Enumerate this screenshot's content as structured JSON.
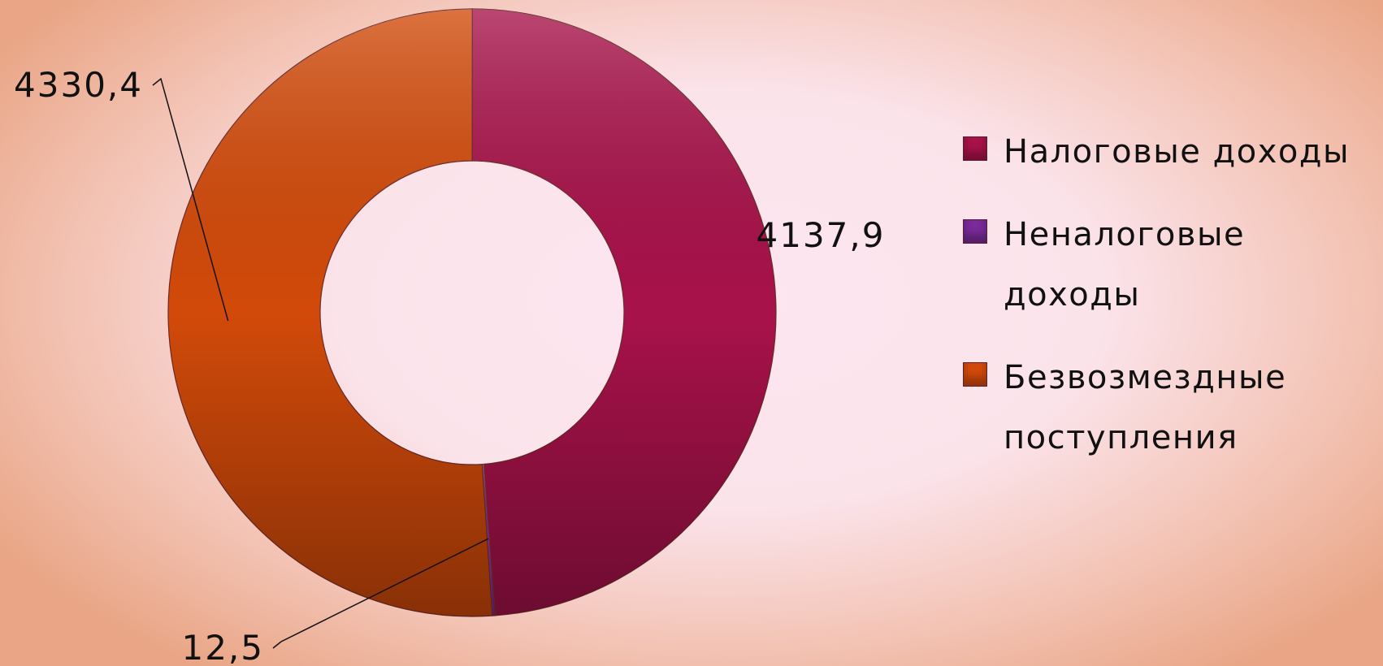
{
  "chart_data": {
    "type": "pie",
    "categories": [
      "Налоговые доходы",
      "Неналоговые доходы",
      "Безвозмездные поступления"
    ],
    "values": [
      4137.9,
      12.5,
      4330.4
    ],
    "value_labels": [
      "4137,9",
      "12,5",
      "4330,4"
    ],
    "colors": [
      "#a8124a",
      "#7a2a9a",
      "#d24a0a"
    ],
    "legend": "right"
  }
}
